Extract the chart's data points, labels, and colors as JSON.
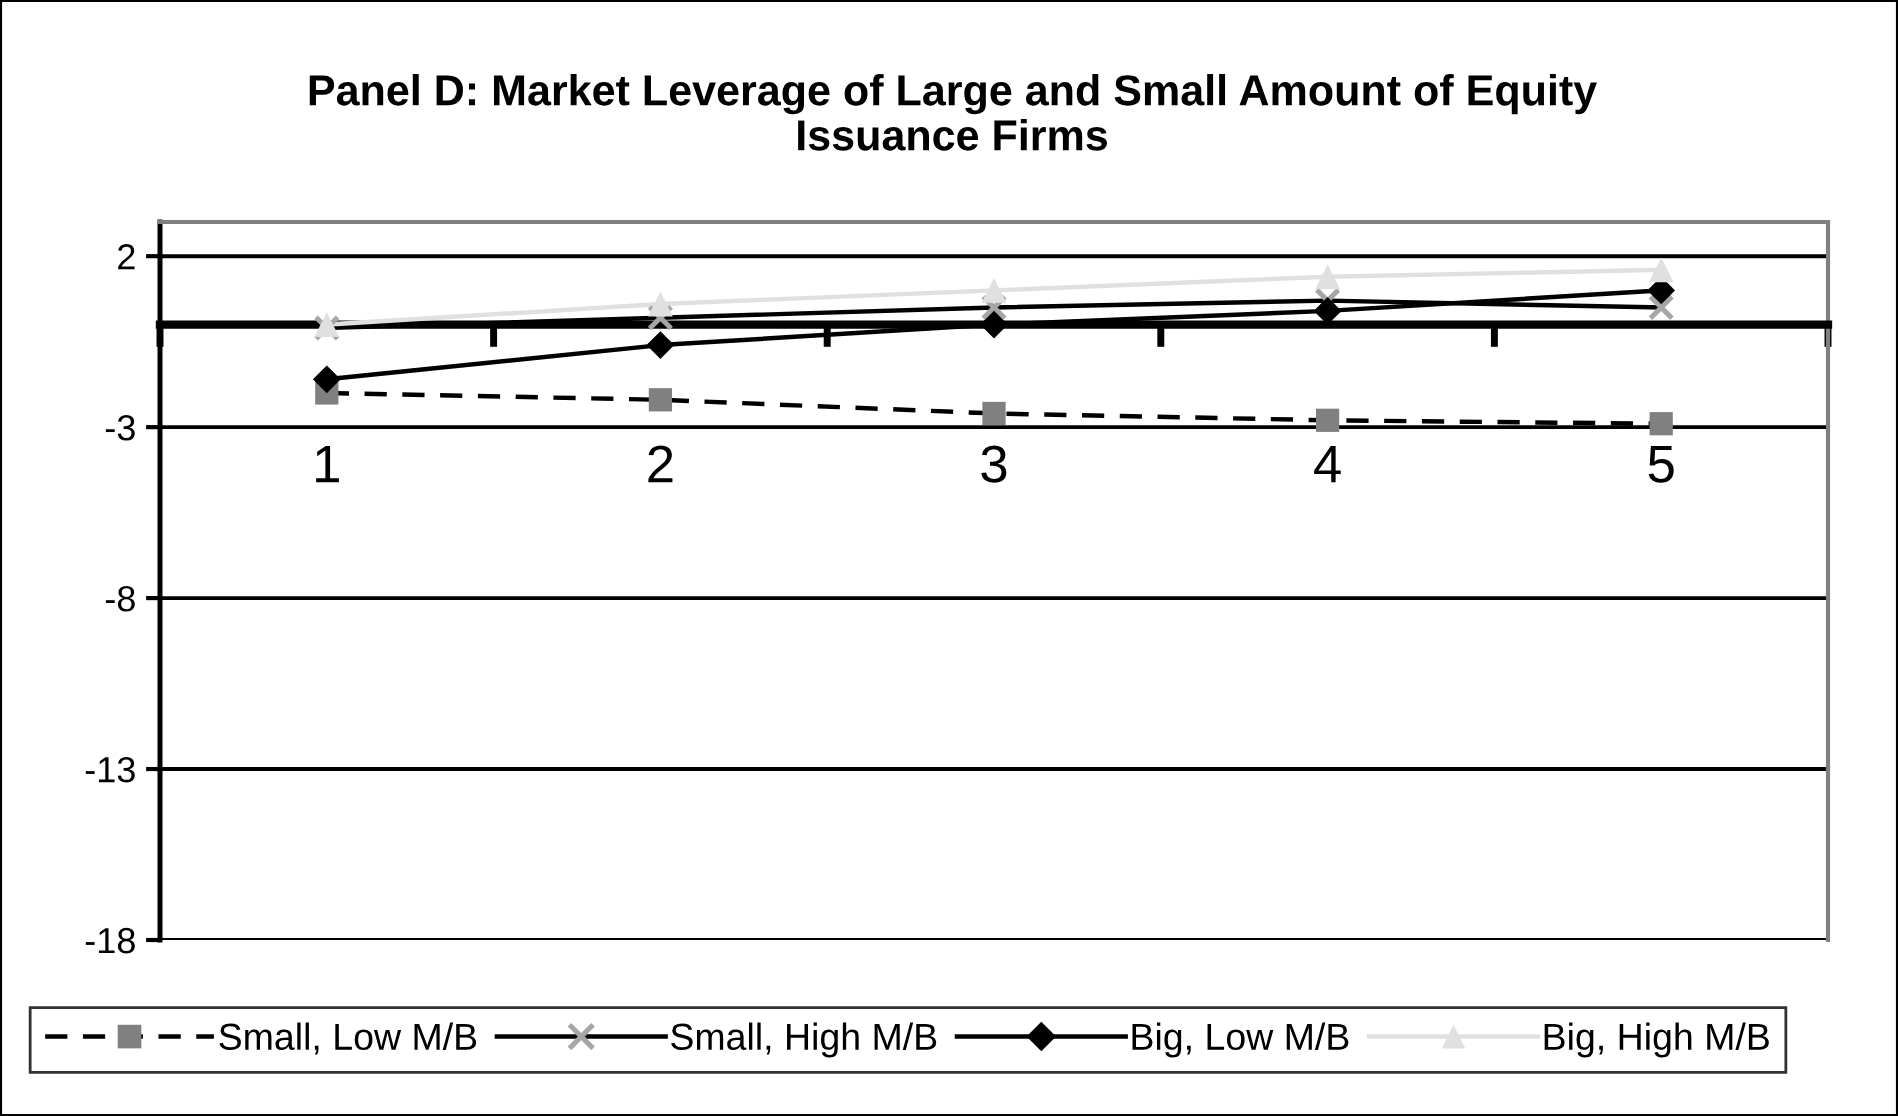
{
  "chart_data": {
    "type": "line",
    "title": "Panel D: Market Leverage of Large and Small Amount of Equity\nIssuance Firms",
    "categories": [
      "1",
      "2",
      "3",
      "4",
      "5"
    ],
    "series": [
      {
        "name": "Small, Low M/B",
        "color": "#000000",
        "colors": [
          "#808080",
          "#808080",
          "#808080",
          "#808080",
          "#808080"
        ],
        "marker": "square",
        "line_style": "dashed",
        "values": [
          -2.0,
          -2.2,
          -2.6,
          -2.8,
          -2.9
        ]
      },
      {
        "name": "Small, High M/B",
        "color": "#000000",
        "colors": [
          "#a6a6a6",
          "#a6a6a6",
          "#a6a6a6",
          "#a6a6a6",
          "#a6a6a6"
        ],
        "marker": "cross",
        "line_style": "solid",
        "values": [
          -0.1,
          0.2,
          0.5,
          0.7,
          0.5
        ]
      },
      {
        "name": "Big, Low M/B",
        "color": "#000000",
        "marker": "diamond",
        "line_style": "solid",
        "values": [
          -1.6,
          -0.6,
          0.0,
          0.4,
          1.0
        ]
      },
      {
        "name": "Big, High M/B",
        "color": "#e0e0e0",
        "marker": "triangle",
        "line_style": "solid",
        "values": [
          0.0,
          0.6,
          1.0,
          1.4,
          1.6
        ]
      }
    ],
    "ylim": [
      -18,
      3
    ],
    "yticks": [
      -18,
      -13,
      -8,
      -3,
      2
    ],
    "grid": "y",
    "legend": "bottom"
  }
}
